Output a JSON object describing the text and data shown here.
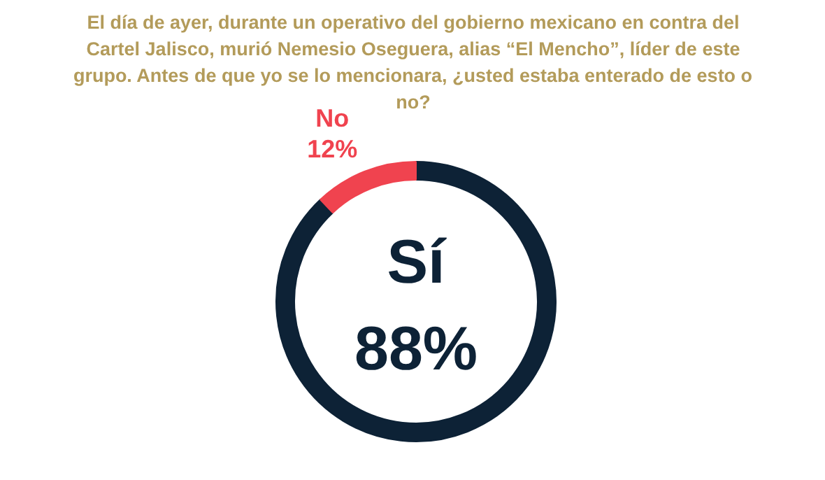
{
  "chart_data": {
    "type": "donut",
    "title": "El día de ayer, durante un operativo del gobierno mexicano en contra del Cartel Jalisco, murió Nemesio Oseguera, alias “El Mencho”, líder de este grupo. Antes de que yo se lo mencionara, ¿usted estaba enterado de esto o no?",
    "categories": [
      "Sí",
      "No"
    ],
    "values": [
      88,
      12
    ],
    "colors": [
      "#0d2236",
      "#f0434f"
    ],
    "value_labels": [
      "88%",
      "12%"
    ]
  }
}
